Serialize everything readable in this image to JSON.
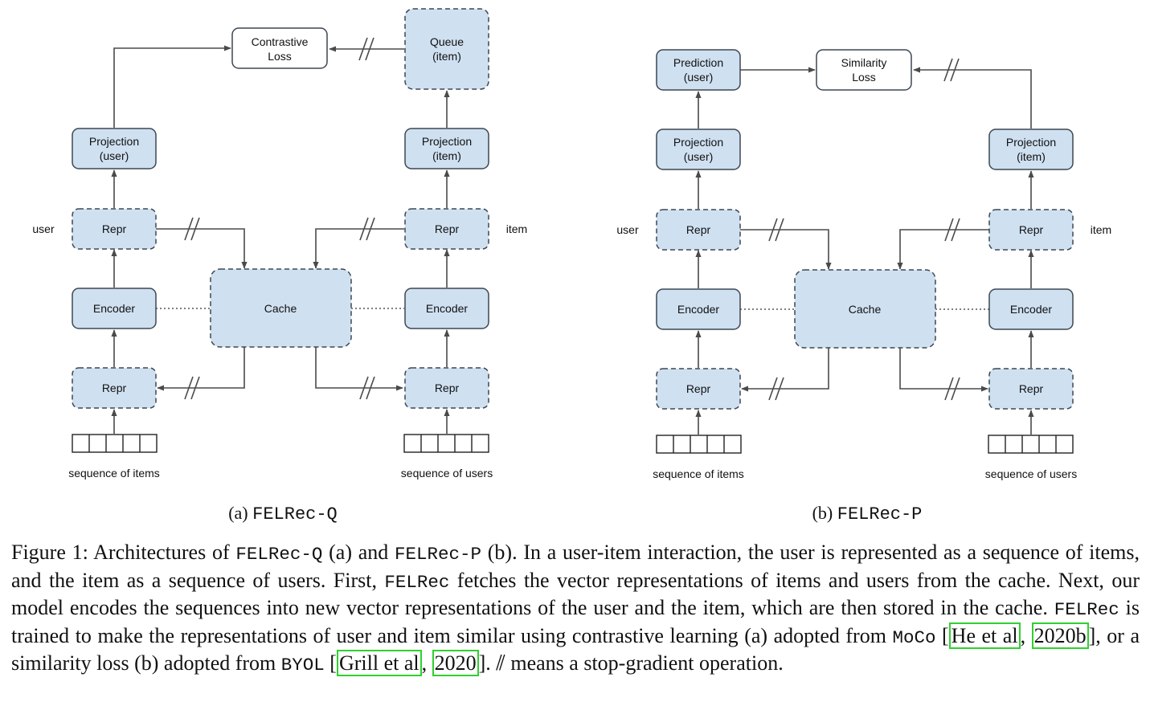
{
  "labels": {
    "contrastive_loss": [
      "Contrastive",
      "Loss"
    ],
    "queue_item": [
      "Queue",
      "(item)"
    ],
    "projection_user": [
      "Projection",
      "(user)"
    ],
    "projection_item": [
      "Projection",
      "(item)"
    ],
    "prediction_user": [
      "Prediction",
      "(user)"
    ],
    "similarity_loss": [
      "Similarity",
      "Loss"
    ],
    "repr": "Repr",
    "encoder": "Encoder",
    "cache": "Cache",
    "user": "user",
    "item": "item",
    "sequence_of_items": "sequence of items",
    "sequence_of_users": "sequence of users"
  },
  "subcaptions": {
    "a": {
      "prefix": "(a) ",
      "name": "FELRec-Q"
    },
    "b": {
      "prefix": "(b) ",
      "name": "FELRec-P"
    }
  },
  "caption": {
    "p1": "Figure 1: Architectures of ",
    "c1": "FELRec-Q",
    "p2": " (a) and ",
    "c2": "FELRec-P",
    "p3": " (b). In a user-item interaction, the user is represented as a sequence of items, and the item as a sequence of users. First, ",
    "c3": "FELRec",
    "p4": " fetches the vector representations of items and users from the cache. Next, our model encodes the sequences into new vector representations of the user and the item, which are then stored in the cache. ",
    "c4": "FELRec",
    "p5": " is trained to make the representations of user and item similar using contrastive learning (a) adopted from ",
    "c5": "MoCo",
    "p6": " [",
    "cite1_author": "He et al",
    "p7": ", ",
    "cite1_year": "2020b",
    "p8": "], or a similarity loss (b) adopted from ",
    "c6": "BYOL",
    "p9": " [",
    "cite2_author": "Grill et al",
    "p10": ", ",
    "cite2_year": "2020",
    "p11": "]. ⫽ means a stop-gradient operation."
  },
  "colors": {
    "box_fill": "#cfe0f1",
    "box_stroke": "#3d4752",
    "arrow": "#4a4a4a",
    "citation_border": "#2fd12f"
  }
}
